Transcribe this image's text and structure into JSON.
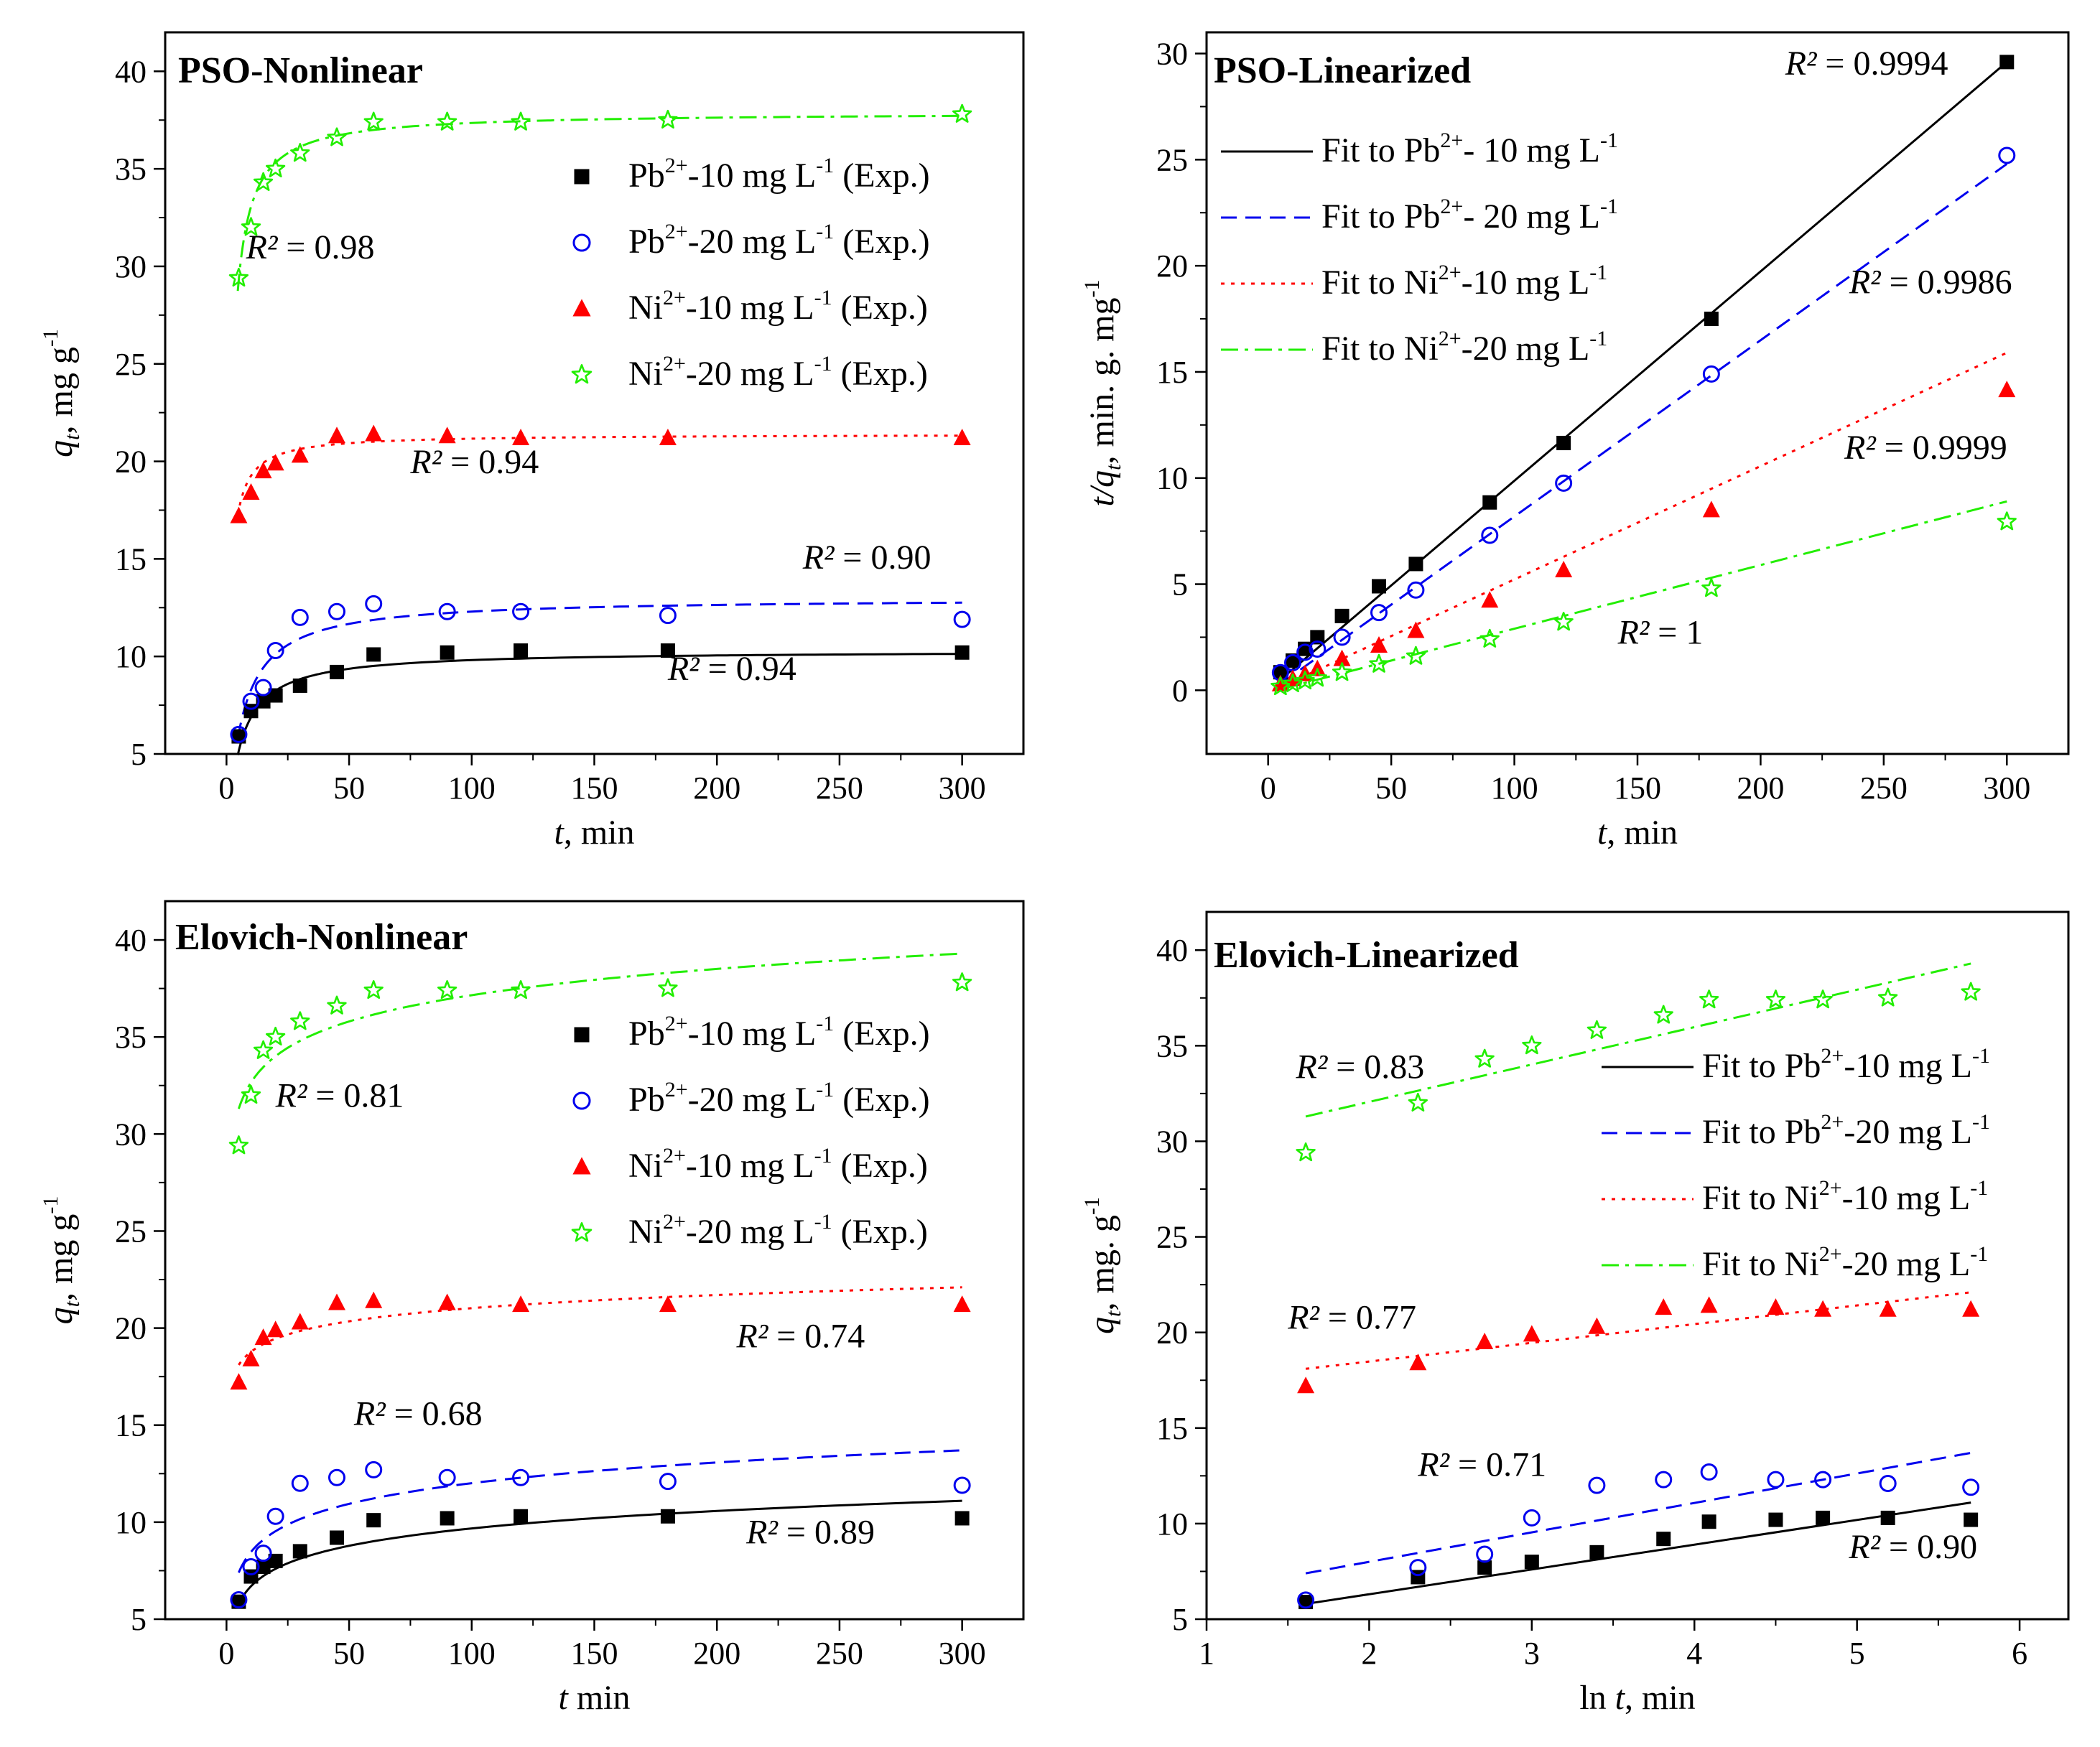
{
  "colors": {
    "pb10": "#000000",
    "pb20": "#0000ee",
    "ni10": "#ff0000",
    "ni20": "#22ee00"
  },
  "icons": {
    "pb10": "filled-square-marker",
    "pb20": "open-circle-marker",
    "ni10": "filled-triangle-marker",
    "ni20": "open-star-marker"
  },
  "chart_data": [
    {
      "id": "pso-nonlinear",
      "type": "scatter",
      "title": "PSO-Nonlinear",
      "xlabel": {
        "italic": "t",
        "rest": ", min"
      },
      "ylabel": {
        "italic": "q",
        "sub": "t",
        "rest": ", mg g",
        "sup": "-1"
      },
      "xlim": [
        -25,
        325
      ],
      "ylim": [
        5,
        42
      ],
      "xticks": [
        0,
        50,
        100,
        150,
        200,
        250,
        300
      ],
      "yticks": [
        5,
        10,
        15,
        20,
        25,
        30,
        35,
        40
      ],
      "x": [
        5,
        10,
        15,
        20,
        30,
        45,
        60,
        90,
        120,
        180,
        300
      ],
      "series": [
        {
          "key": "pb10",
          "name": "Pb2+-10 mg L-1 (Exp.)",
          "values": [
            5.9,
            7.2,
            7.7,
            8.0,
            8.5,
            9.2,
            10.1,
            10.2,
            10.3,
            10.3,
            10.2
          ],
          "fit": {
            "kind": "pso",
            "qe": 10.3,
            "k": 0.0195
          }
        },
        {
          "key": "pb20",
          "name": "Pb2+-20 mg L-1 (Exp.)",
          "values": [
            6.0,
            7.7,
            8.4,
            10.3,
            12.0,
            12.3,
            12.7,
            12.3,
            12.3,
            12.1,
            11.9
          ],
          "fit": {
            "kind": "pso",
            "qe": 13.0,
            "k": 0.0135
          }
        },
        {
          "key": "ni10",
          "name": "Ni2+-10 mg L-1 (Exp.)",
          "values": [
            17.2,
            18.4,
            19.5,
            19.9,
            20.3,
            21.3,
            21.4,
            21.3,
            21.2,
            21.2,
            21.2
          ],
          "fit": {
            "kind": "pso",
            "qe": 21.4,
            "k": 0.042
          }
        },
        {
          "key": "ni20",
          "name": "Ni2+-20 mg L-1 (Exp.)",
          "values": [
            29.4,
            32.0,
            34.3,
            35.0,
            35.8,
            36.6,
            37.4,
            37.4,
            37.4,
            37.5,
            37.8
          ],
          "fit": {
            "kind": "pso",
            "qe": 37.9,
            "k": 0.018
          }
        }
      ],
      "annotations": [
        {
          "label": "R² = 0.98",
          "x": 8,
          "y": 30.4
        },
        {
          "label": "R² = 0.94",
          "x": 75,
          "y": 19.4
        },
        {
          "label": "R² = 0.90",
          "x": 235,
          "y": 14.5
        },
        {
          "label": "R² = 0.94",
          "x": 180,
          "y": 8.8
        }
      ]
    },
    {
      "id": "pso-linearized",
      "type": "scatter",
      "title": "PSO-Linearized",
      "xlabel": {
        "italic": "t",
        "rest": ", min"
      },
      "ylabel": {
        "italic": "t/q",
        "sub": "t",
        "rest": ", min. g. mg",
        "sup": "-1"
      },
      "xlim": [
        -25,
        325
      ],
      "ylim": [
        -3,
        31
      ],
      "xticks": [
        0,
        50,
        100,
        150,
        200,
        250,
        300
      ],
      "yticks": [
        0,
        5,
        10,
        15,
        20,
        25,
        30
      ],
      "x": [
        5,
        10,
        15,
        20,
        30,
        45,
        60,
        90,
        120,
        180,
        300
      ],
      "series": [
        {
          "key": "pb10",
          "name": "Fit to Pb2+- 10 mg L-1",
          "values": [
            0.85,
            1.4,
            1.95,
            2.5,
            3.5,
            4.9,
            5.95,
            8.85,
            11.65,
            17.5,
            29.6
          ],
          "fit": {
            "kind": "line",
            "x0": 5,
            "y0": 0.5,
            "x1": 300,
            "y1": 29.6
          }
        },
        {
          "key": "pb20",
          "name": "Fit to Pb2+- 20 mg L-1",
          "values": [
            0.83,
            1.3,
            1.79,
            1.94,
            2.5,
            3.66,
            4.72,
            7.3,
            9.76,
            14.9,
            25.2
          ],
          "fit": {
            "kind": "line",
            "x0": 5,
            "y0": 0.3,
            "x1": 300,
            "y1": 24.8
          }
        },
        {
          "key": "ni10",
          "name": "Fit to Ni2+-10 mg L-1",
          "values": [
            0.29,
            0.54,
            0.77,
            1.0,
            1.48,
            2.11,
            2.8,
            4.23,
            5.66,
            8.49,
            14.15
          ],
          "fit": {
            "kind": "line",
            "x0": 5,
            "y0": 0.15,
            "x1": 300,
            "y1": 15.9
          }
        },
        {
          "key": "ni20",
          "name": "Fit to Ni2+-20 mg L-1",
          "values": [
            0.17,
            0.31,
            0.44,
            0.57,
            0.84,
            1.23,
            1.6,
            2.41,
            3.21,
            4.8,
            7.94
          ],
          "fit": {
            "kind": "line",
            "x0": 5,
            "y0": 0.05,
            "x1": 300,
            "y1": 8.9
          }
        }
      ],
      "annotations": [
        {
          "label": "R² = 0.9994",
          "x": 210,
          "y": 29.0
        },
        {
          "label": "R² = 0.9986",
          "x": 236,
          "y": 18.7
        },
        {
          "label": "R² = 0.9999",
          "x": 234,
          "y": 10.9
        },
        {
          "label": "R² = 1",
          "x": 142,
          "y": 2.2
        }
      ]
    },
    {
      "id": "elovich-nonlinear",
      "type": "scatter",
      "title": "Elovich-Nonlinear",
      "xlabel": {
        "italic": "t",
        "rest": " min"
      },
      "ylabel": {
        "italic": "q",
        "sub": "t",
        "rest": ", mg g",
        "sup": "-1"
      },
      "xlim": [
        -25,
        325
      ],
      "ylim": [
        5,
        42
      ],
      "xticks": [
        0,
        50,
        100,
        150,
        200,
        250,
        300
      ],
      "yticks": [
        5,
        10,
        15,
        20,
        25,
        30,
        35,
        40
      ],
      "x": [
        5,
        10,
        15,
        20,
        30,
        45,
        60,
        90,
        120,
        180,
        300
      ],
      "series": [
        {
          "key": "pb10",
          "name": "Pb2+-10 mg L-1 (Exp.)",
          "values": [
            5.9,
            7.2,
            7.7,
            8.0,
            8.5,
            9.2,
            10.1,
            10.2,
            10.3,
            10.3,
            10.2
          ],
          "fit": {
            "kind": "log",
            "y5": 5.8,
            "y300": 11.1
          }
        },
        {
          "key": "pb20",
          "name": "Pb2+-20 mg L-1 (Exp.)",
          "values": [
            6.0,
            7.7,
            8.4,
            10.3,
            12.0,
            12.3,
            12.7,
            12.3,
            12.3,
            12.1,
            11.9
          ],
          "fit": {
            "kind": "log",
            "y5": 7.4,
            "y300": 13.7
          }
        },
        {
          "key": "ni10",
          "name": "Ni2+-10 mg L-1 (Exp.)",
          "values": [
            17.2,
            18.4,
            19.5,
            19.9,
            20.3,
            21.3,
            21.4,
            21.3,
            21.2,
            21.2,
            21.2
          ],
          "fit": {
            "kind": "log",
            "y5": 18.1,
            "y300": 22.1
          }
        },
        {
          "key": "ni20",
          "name": "Ni2+-20 mg L-1 (Exp.)",
          "values": [
            29.4,
            32.0,
            34.3,
            35.0,
            35.8,
            36.6,
            37.4,
            37.4,
            37.4,
            37.5,
            37.8
          ],
          "fit": {
            "kind": "log",
            "y5": 31.3,
            "y300": 39.3
          }
        }
      ],
      "annotations": [
        {
          "label": "R² = 0.81",
          "x": 20,
          "y": 31.4
        },
        {
          "label": "R² = 0.74",
          "x": 208,
          "y": 19.0
        },
        {
          "label": "R² = 0.68",
          "x": 52,
          "y": 15.0
        },
        {
          "label": "R² = 0.89",
          "x": 212,
          "y": 8.9
        }
      ]
    },
    {
      "id": "elovich-linearized",
      "type": "scatter",
      "title": "Elovich-Linearized",
      "xlabel": {
        "italic": "t",
        "pre": "ln ",
        "rest": ", min"
      },
      "ylabel": {
        "italic": "q",
        "sub": "t",
        "rest": ", mg. g",
        "sup": "-1"
      },
      "xlim": [
        1,
        6.3
      ],
      "ylim": [
        5,
        42
      ],
      "xticks": [
        1,
        2,
        3,
        4,
        5,
        6
      ],
      "yticks": [
        5,
        10,
        15,
        20,
        25,
        30,
        35,
        40
      ],
      "x": [
        1.61,
        2.3,
        2.71,
        3.0,
        3.4,
        3.81,
        4.09,
        4.5,
        4.79,
        5.19,
        5.7
      ],
      "series": [
        {
          "key": "pb10",
          "name": "Fit to Pb2+-10 mg L-1",
          "values": [
            5.9,
            7.2,
            7.7,
            8.0,
            8.5,
            9.2,
            10.1,
            10.2,
            10.3,
            10.3,
            10.2
          ],
          "fit": {
            "kind": "line",
            "x0": 1.61,
            "y0": 5.8,
            "x1": 5.7,
            "y1": 11.1
          }
        },
        {
          "key": "pb20",
          "name": "Fit to Pb2+-20 mg L-1",
          "values": [
            6.0,
            7.7,
            8.4,
            10.3,
            12.0,
            12.3,
            12.7,
            12.3,
            12.3,
            12.1,
            11.9
          ],
          "fit": {
            "kind": "line",
            "x0": 1.61,
            "y0": 7.4,
            "x1": 5.7,
            "y1": 13.7
          }
        },
        {
          "key": "ni10",
          "name": "Fit to Ni2+-10 mg L-1",
          "values": [
            17.2,
            18.4,
            19.5,
            19.9,
            20.3,
            21.3,
            21.4,
            21.3,
            21.2,
            21.2,
            21.2
          ],
          "fit": {
            "kind": "line",
            "x0": 1.61,
            "y0": 18.1,
            "x1": 5.7,
            "y1": 22.1
          }
        },
        {
          "key": "ni20",
          "name": "Fit to Ni2+-20 mg L-1",
          "values": [
            29.4,
            32.0,
            34.3,
            35.0,
            35.8,
            36.6,
            37.4,
            37.4,
            37.4,
            37.5,
            37.8
          ],
          "fit": {
            "kind": "line",
            "x0": 1.61,
            "y0": 31.3,
            "x1": 5.7,
            "y1": 39.3
          }
        }
      ],
      "annotations": [
        {
          "label": "R² = 0.83",
          "x": 1.55,
          "y": 33.3
        },
        {
          "label": "R² = 0.77",
          "x": 1.5,
          "y": 20.2
        },
        {
          "label": "R² = 0.71",
          "x": 2.3,
          "y": 12.5
        },
        {
          "label": "R² = 0.90",
          "x": 4.95,
          "y": 8.2
        }
      ]
    }
  ]
}
